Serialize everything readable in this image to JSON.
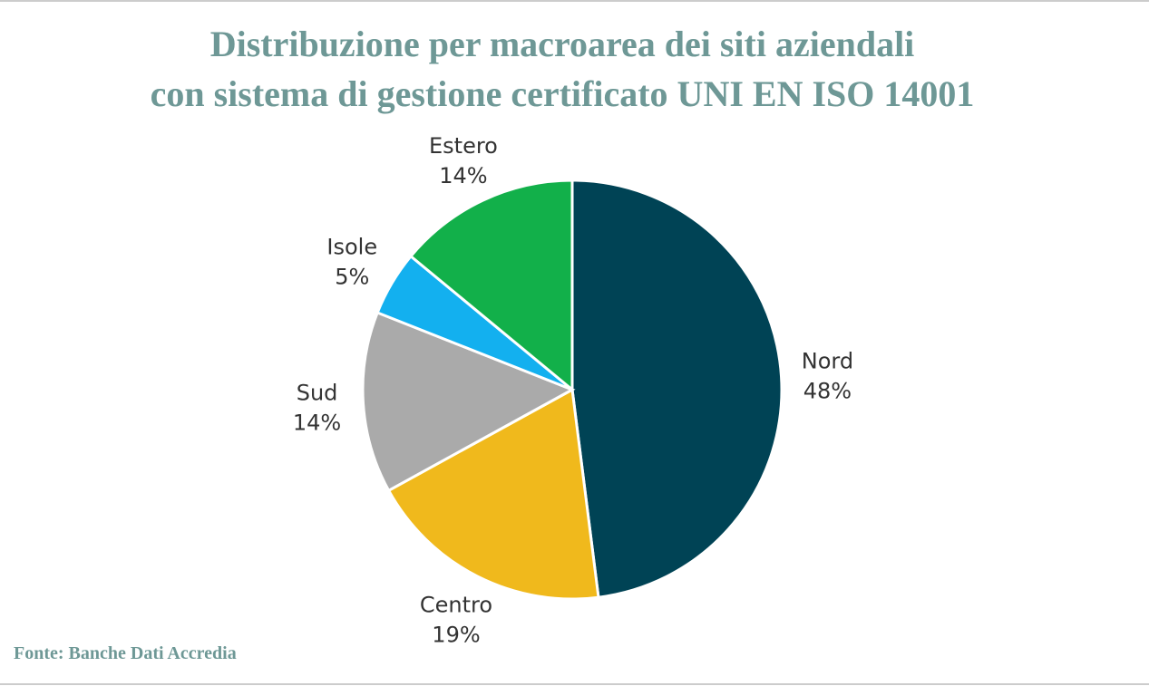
{
  "chart_data": {
    "type": "pie",
    "title": [
      "Distribuzione per macroarea dei siti aziendali",
      "con sistema di gestione certificato UNI EN ISO 14001"
    ],
    "categories": [
      "Nord",
      "Centro",
      "Sud",
      "Isole",
      "Estero"
    ],
    "values": [
      48,
      19,
      14,
      5,
      14
    ],
    "value_labels": [
      "48%",
      "19%",
      "14%",
      "5%",
      "14%"
    ],
    "colors": [
      "#004355",
      "#f0b91c",
      "#aaaaaa",
      "#13b0ef",
      "#12b04a"
    ],
    "source": "Fonte: Banche Dati Accredia"
  }
}
